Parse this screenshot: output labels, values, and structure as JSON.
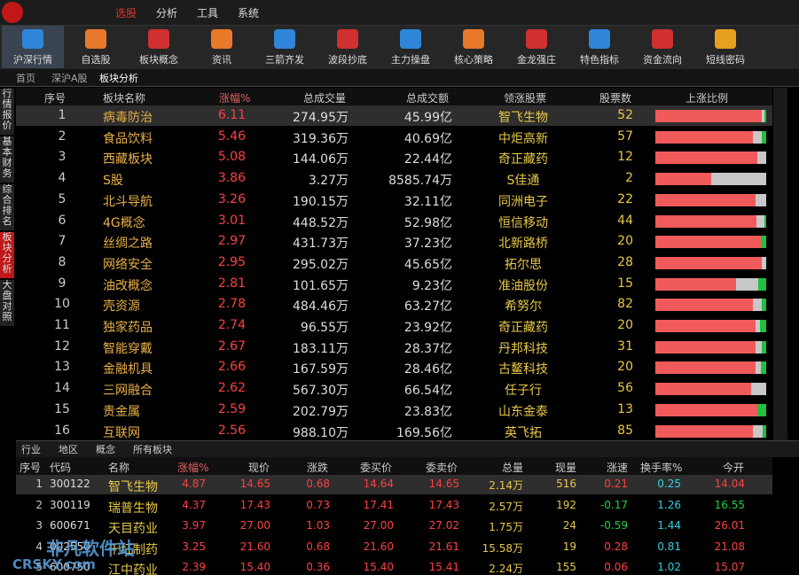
{
  "menu": [
    "选股",
    "分析",
    "工具",
    "系统"
  ],
  "toolbar": [
    "沪深行情",
    "自选股",
    "板块概念",
    "资讯",
    "三箭齐发",
    "波段抄底",
    "主力操盘",
    "核心策略",
    "金龙强庄",
    "特色指标",
    "资金流向",
    "短线密码"
  ],
  "tabs": [
    "首页",
    "深沪A股",
    "板块分析"
  ],
  "side_tabs": [
    "行情报价",
    "基本财务",
    "综合排名",
    "板块分析",
    "大盘对照"
  ],
  "sector_table": {
    "headers": [
      "序号",
      "板块名称",
      "涨幅%",
      "总成交量",
      "总成交额",
      "领涨股票",
      "股票数",
      "上涨比例"
    ],
    "rows": [
      [
        "1",
        "病毒防治",
        "6.11",
        "274.95万",
        "45.99亿",
        "智飞生物",
        "52"
      ],
      [
        "2",
        "食品饮料",
        "5.46",
        "319.36万",
        "40.69亿",
        "中炬高新",
        "57"
      ],
      [
        "3",
        "西藏板块",
        "5.08",
        "144.06万",
        "22.44亿",
        "奇正藏药",
        "12"
      ],
      [
        "4",
        "S股",
        "3.86",
        "3.27万",
        "8585.74万",
        "S佳通",
        "2"
      ],
      [
        "5",
        "北斗导航",
        "3.26",
        "190.15万",
        "32.11亿",
        "同洲电子",
        "22"
      ],
      [
        "6",
        "4G概念",
        "3.01",
        "448.52万",
        "52.98亿",
        "恒信移动",
        "44"
      ],
      [
        "7",
        "丝绸之路",
        "2.97",
        "431.73万",
        "37.23亿",
        "北新路桥",
        "20"
      ],
      [
        "8",
        "网络安全",
        "2.95",
        "295.02万",
        "45.65亿",
        "拓尔思",
        "28"
      ],
      [
        "9",
        "油改概念",
        "2.81",
        "101.65万",
        "9.23亿",
        "准油股份",
        "15"
      ],
      [
        "10",
        "壳资源",
        "2.78",
        "484.46万",
        "63.27亿",
        "希努尔",
        "82"
      ],
      [
        "11",
        "独家药品",
        "2.74",
        "96.55万",
        "23.92亿",
        "奇正藏药",
        "20"
      ],
      [
        "12",
        "智能穿戴",
        "2.67",
        "183.11万",
        "28.37亿",
        "丹邦科技",
        "31"
      ],
      [
        "13",
        "金融机具",
        "2.66",
        "167.59万",
        "28.46亿",
        "古鳌科技",
        "20"
      ],
      [
        "14",
        "三网融合",
        "2.62",
        "567.30万",
        "66.54亿",
        "任子行",
        "56"
      ],
      [
        "15",
        "贵金属",
        "2.59",
        "202.79万",
        "23.83亿",
        "山东金泰",
        "13"
      ],
      [
        "16",
        "互联网",
        "2.56",
        "988.10万",
        "169.56亿",
        "英飞拓",
        "85"
      ]
    ],
    "up_ratio": [
      96,
      88,
      92,
      50,
      90,
      91,
      95,
      96,
      73,
      88,
      90,
      90,
      90,
      86,
      92,
      88
    ],
    "down_ratio": [
      2,
      4,
      0,
      0,
      0,
      2,
      5,
      0,
      7,
      4,
      6,
      4,
      5,
      0,
      8,
      3
    ]
  },
  "bottom_tabs": [
    "行业",
    "地区",
    "概念",
    "所有板块"
  ],
  "stock_table": {
    "headers": [
      "序号",
      "代码",
      "名称",
      "涨幅%",
      "现价",
      "涨跌",
      "委买价",
      "委卖价",
      "总量",
      "现量",
      "涨速",
      "换手率%",
      "今开"
    ],
    "rows": [
      [
        "1",
        "300122",
        "智飞生物",
        "4.87",
        "14.65",
        "0.68",
        "14.64",
        "14.65",
        "2.14万",
        "516",
        "0.21",
        "0.25",
        "14.04"
      ],
      [
        "2",
        "300119",
        "瑞普生物",
        "4.37",
        "17.43",
        "0.73",
        "17.41",
        "17.43",
        "2.57万",
        "192",
        "-0.17",
        "1.26",
        "16.55"
      ],
      [
        "3",
        "600671",
        "天目药业",
        "3.97",
        "27.00",
        "1.03",
        "27.00",
        "27.02",
        "1.75万",
        "24",
        "-0.59",
        "1.44",
        "26.01"
      ],
      [
        "4",
        "002550",
        "千红制药",
        "3.25",
        "21.60",
        "0.68",
        "21.60",
        "21.61",
        "15.58万",
        "19",
        "0.28",
        "0.81",
        "21.08"
      ],
      [
        "5",
        "600750",
        "江中药业",
        "2.39",
        "15.40",
        "0.36",
        "15.40",
        "15.41",
        "2.24万",
        "155",
        "0.06",
        "1.02",
        "15.07"
      ]
    ]
  },
  "watermark": [
    "非凡软件站",
    "CRSKY.com"
  ]
}
